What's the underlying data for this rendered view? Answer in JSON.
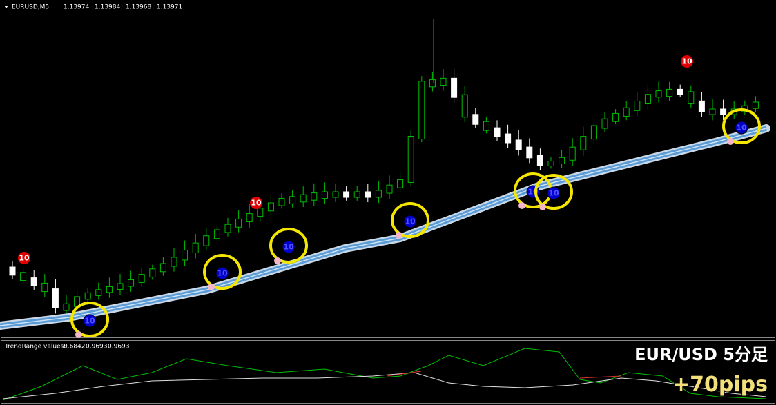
{
  "header": {
    "symbol": "EURUSD,M5",
    "prices": [
      1.13974,
      1.13984,
      1.13968,
      1.13971
    ]
  },
  "markers": {
    "sell": [
      10,
      10,
      10
    ],
    "buy": [
      10,
      10,
      10,
      10,
      10,
      10,
      10
    ]
  },
  "indicator": {
    "label": "TrendRange values:",
    "values": [
      0.6842,
      0.9693,
      0.9693
    ]
  },
  "overlay": {
    "title": "EUR/USD 5分足",
    "result": "+70pips"
  }
}
